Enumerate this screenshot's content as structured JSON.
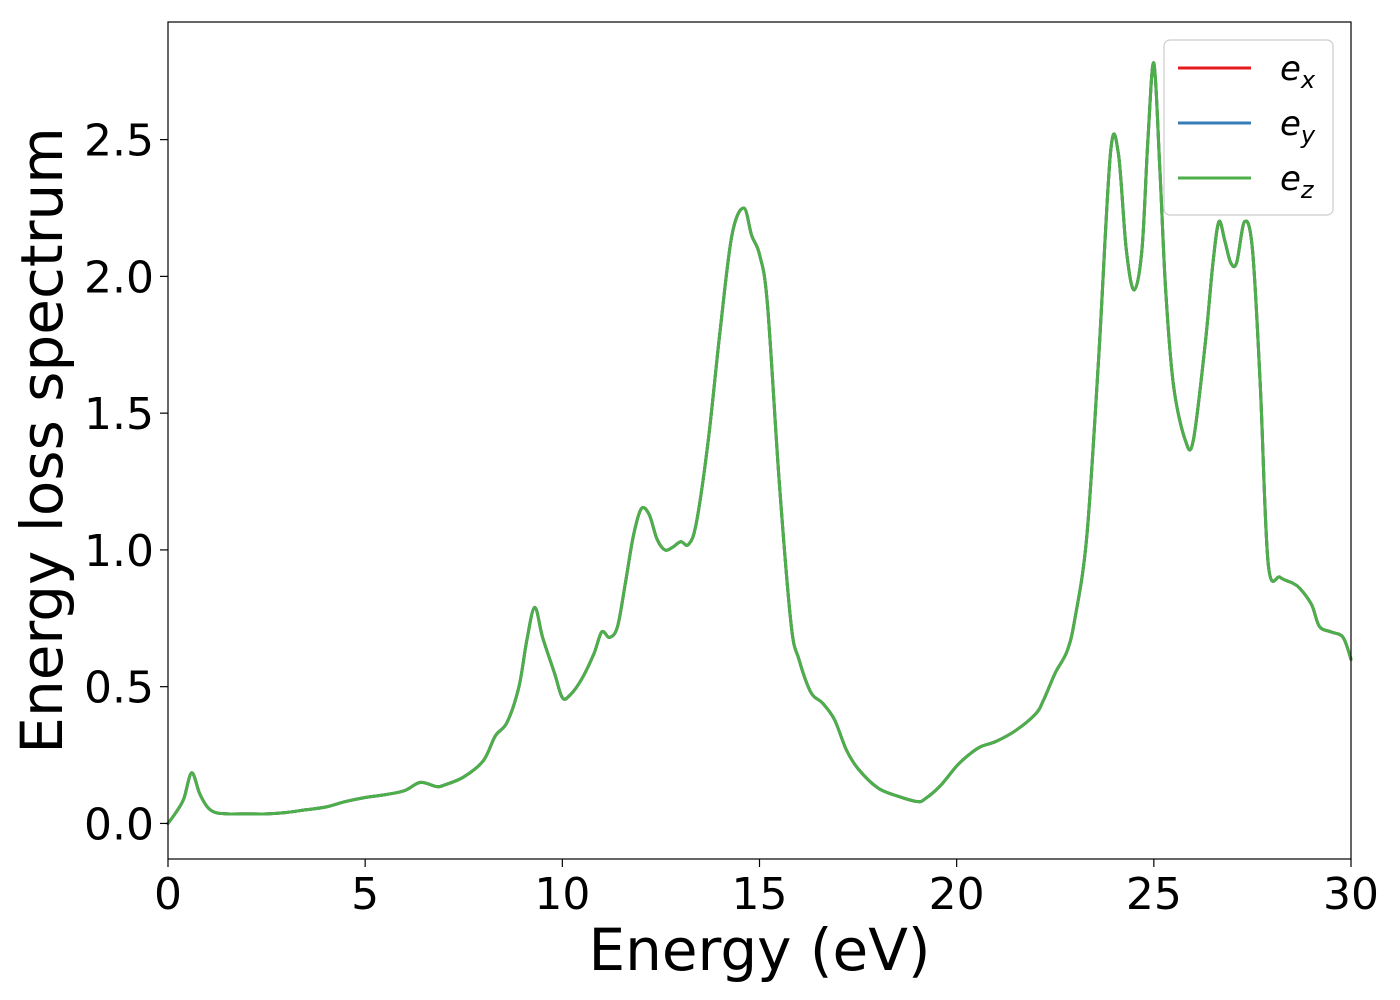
{
  "chart_data": {
    "type": "line",
    "xlabel": "Energy (eV)",
    "ylabel": "Energy loss spectrum",
    "xlim": [
      0,
      30
    ],
    "ylim": [
      -0.13,
      2.93
    ],
    "xticks": [
      0,
      5,
      10,
      15,
      20,
      25,
      30
    ],
    "xtick_labels": [
      "0",
      "5",
      "10",
      "15",
      "20",
      "25",
      "30"
    ],
    "yticks": [
      0.0,
      0.5,
      1.0,
      1.5,
      2.0,
      2.5
    ],
    "ytick_labels": [
      "0.0",
      "0.5",
      "1.0",
      "1.5",
      "2.0",
      "2.5"
    ],
    "grid": false,
    "legend_position": "top-right",
    "x": [
      0,
      0.2,
      0.4,
      0.6,
      0.8,
      1.0,
      1.2,
      1.5,
      2.0,
      2.5,
      3.0,
      3.5,
      4.0,
      4.5,
      5.0,
      5.5,
      6.0,
      6.4,
      6.8,
      7.0,
      7.5,
      8.0,
      8.3,
      8.6,
      8.9,
      9.1,
      9.3,
      9.5,
      9.8,
      10.0,
      10.2,
      10.5,
      10.8,
      11.0,
      11.2,
      11.4,
      11.6,
      11.8,
      12.0,
      12.2,
      12.4,
      12.6,
      12.8,
      13.0,
      13.2,
      13.4,
      13.7,
      14.0,
      14.3,
      14.6,
      14.8,
      15.0,
      15.2,
      15.5,
      15.8,
      16.0,
      16.3,
      16.6,
      16.9,
      17.2,
      17.5,
      18.0,
      18.5,
      19.0,
      19.2,
      19.6,
      20.0,
      20.3,
      20.6,
      21.0,
      21.5,
      22.0,
      22.2,
      22.5,
      22.8,
      23.0,
      23.3,
      23.6,
      23.9,
      24.1,
      24.3,
      24.5,
      24.7,
      24.85,
      25.0,
      25.15,
      25.3,
      25.5,
      25.8,
      26.0,
      26.3,
      26.5,
      26.65,
      26.8,
      26.95,
      27.1,
      27.3,
      27.5,
      27.7,
      27.9,
      28.2,
      28.5,
      28.7,
      29.0,
      29.2,
      29.5,
      29.8,
      30.0
    ],
    "series": [
      {
        "name": "e_x",
        "label_base": "e",
        "label_sub": "x",
        "color": "#e41a1c",
        "values": [
          0.0,
          0.04,
          0.09,
          0.185,
          0.11,
          0.06,
          0.04,
          0.035,
          0.035,
          0.035,
          0.04,
          0.05,
          0.06,
          0.08,
          0.095,
          0.105,
          0.12,
          0.15,
          0.135,
          0.14,
          0.17,
          0.23,
          0.32,
          0.37,
          0.5,
          0.67,
          0.79,
          0.68,
          0.55,
          0.46,
          0.47,
          0.53,
          0.62,
          0.7,
          0.68,
          0.72,
          0.88,
          1.05,
          1.15,
          1.13,
          1.04,
          1.0,
          1.01,
          1.03,
          1.02,
          1.1,
          1.4,
          1.8,
          2.15,
          2.25,
          2.15,
          2.08,
          1.9,
          1.25,
          0.73,
          0.6,
          0.48,
          0.44,
          0.38,
          0.27,
          0.2,
          0.13,
          0.1,
          0.08,
          0.09,
          0.14,
          0.21,
          0.25,
          0.28,
          0.3,
          0.34,
          0.4,
          0.45,
          0.55,
          0.63,
          0.75,
          1.05,
          1.7,
          2.45,
          2.45,
          2.1,
          1.95,
          2.1,
          2.5,
          2.78,
          2.4,
          1.95,
          1.6,
          1.4,
          1.4,
          1.75,
          2.05,
          2.2,
          2.13,
          2.05,
          2.05,
          2.2,
          2.1,
          1.6,
          0.95,
          0.9,
          0.88,
          0.86,
          0.8,
          0.72,
          0.7,
          0.68,
          0.6
        ]
      },
      {
        "name": "e_y",
        "label_base": "e",
        "label_sub": "y",
        "color": "#377eb8",
        "values": [
          0.0,
          0.04,
          0.09,
          0.185,
          0.11,
          0.06,
          0.04,
          0.035,
          0.035,
          0.035,
          0.04,
          0.05,
          0.06,
          0.08,
          0.095,
          0.105,
          0.12,
          0.15,
          0.135,
          0.14,
          0.17,
          0.23,
          0.32,
          0.37,
          0.5,
          0.67,
          0.79,
          0.68,
          0.55,
          0.46,
          0.47,
          0.53,
          0.62,
          0.7,
          0.68,
          0.72,
          0.88,
          1.05,
          1.15,
          1.13,
          1.04,
          1.0,
          1.01,
          1.03,
          1.02,
          1.1,
          1.4,
          1.8,
          2.15,
          2.25,
          2.15,
          2.08,
          1.9,
          1.25,
          0.73,
          0.6,
          0.48,
          0.44,
          0.38,
          0.27,
          0.2,
          0.13,
          0.1,
          0.08,
          0.09,
          0.14,
          0.21,
          0.25,
          0.28,
          0.3,
          0.34,
          0.4,
          0.45,
          0.55,
          0.63,
          0.75,
          1.05,
          1.7,
          2.45,
          2.45,
          2.1,
          1.95,
          2.1,
          2.5,
          2.78,
          2.4,
          1.95,
          1.6,
          1.4,
          1.4,
          1.75,
          2.05,
          2.2,
          2.13,
          2.05,
          2.05,
          2.2,
          2.1,
          1.6,
          0.95,
          0.9,
          0.88,
          0.86,
          0.8,
          0.72,
          0.7,
          0.68,
          0.6
        ]
      },
      {
        "name": "e_z",
        "label_base": "e",
        "label_sub": "z",
        "color": "#4daf4a",
        "values": [
          0.0,
          0.04,
          0.09,
          0.185,
          0.11,
          0.06,
          0.04,
          0.035,
          0.035,
          0.035,
          0.04,
          0.05,
          0.06,
          0.08,
          0.095,
          0.105,
          0.12,
          0.15,
          0.135,
          0.14,
          0.17,
          0.23,
          0.32,
          0.37,
          0.5,
          0.67,
          0.79,
          0.68,
          0.55,
          0.46,
          0.47,
          0.53,
          0.62,
          0.7,
          0.68,
          0.72,
          0.88,
          1.05,
          1.15,
          1.13,
          1.04,
          1.0,
          1.01,
          1.03,
          1.02,
          1.1,
          1.4,
          1.8,
          2.15,
          2.25,
          2.15,
          2.08,
          1.9,
          1.25,
          0.73,
          0.6,
          0.48,
          0.44,
          0.38,
          0.27,
          0.2,
          0.13,
          0.1,
          0.08,
          0.09,
          0.14,
          0.21,
          0.25,
          0.28,
          0.3,
          0.34,
          0.4,
          0.45,
          0.55,
          0.63,
          0.75,
          1.05,
          1.7,
          2.45,
          2.45,
          2.1,
          1.95,
          2.1,
          2.5,
          2.78,
          2.4,
          1.95,
          1.6,
          1.4,
          1.4,
          1.75,
          2.05,
          2.2,
          2.13,
          2.05,
          2.05,
          2.2,
          2.1,
          1.6,
          0.95,
          0.9,
          0.88,
          0.86,
          0.8,
          0.72,
          0.7,
          0.68,
          0.6
        ]
      }
    ]
  }
}
